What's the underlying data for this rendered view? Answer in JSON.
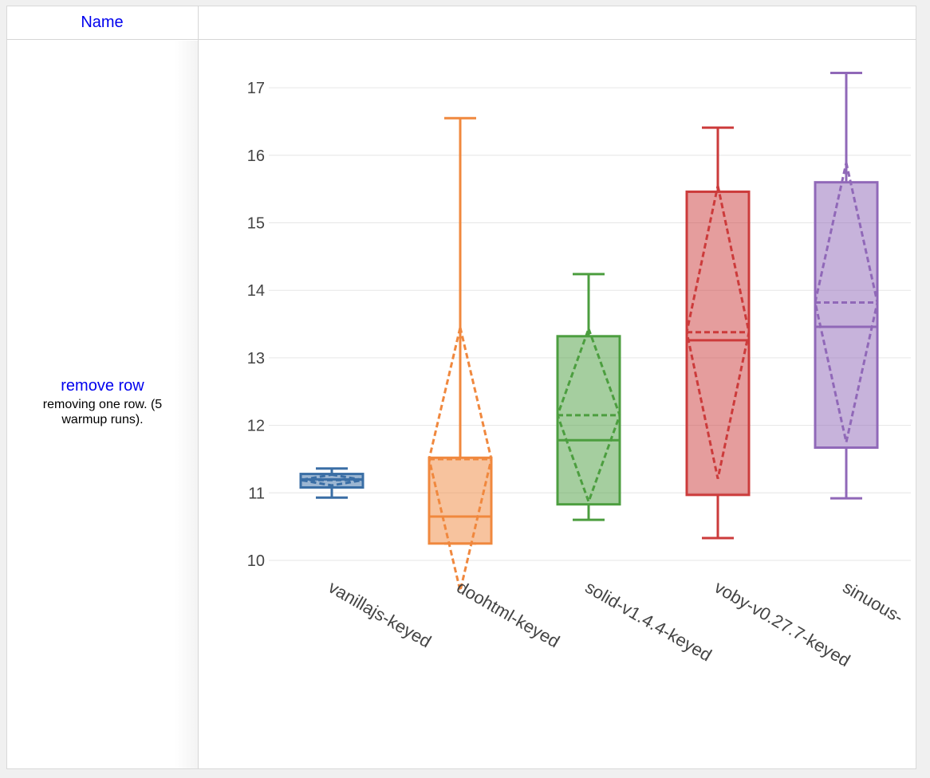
{
  "table": {
    "header_name": "Name",
    "benchmark": {
      "name": "remove row",
      "description": "removing one row. (5 warmup runs)."
    }
  },
  "chart_data": {
    "type": "box",
    "ylim": [
      9.9,
      17.4
    ],
    "y_ticks": [
      10,
      11,
      12,
      13,
      14,
      15,
      16,
      17
    ],
    "grid": true,
    "categories": [
      "vanillajs-keyed",
      "doohtml-keyed",
      "solid-v1.4.4-keyed",
      "voby-v0.27.7-keyed",
      "sinuous-"
    ],
    "series": [
      {
        "category": "vanillajs-keyed",
        "color": "#3a6ea5",
        "min": 10.93,
        "q1": 11.08,
        "median": 11.2,
        "q3": 11.28,
        "max": 11.36,
        "mean": 11.19,
        "sd": 0.08
      },
      {
        "category": "doohtml-keyed",
        "color": "#f0883e",
        "min": 10.25,
        "q1": 10.25,
        "median": 10.65,
        "q3": 11.52,
        "max": 16.55,
        "mean": 11.5,
        "sd": 1.95
      },
      {
        "category": "solid-v1.4.4-keyed",
        "color": "#4c9e3f",
        "min": 10.6,
        "q1": 10.83,
        "median": 11.78,
        "q3": 13.32,
        "max": 14.24,
        "mean": 12.15,
        "sd": 1.28
      },
      {
        "category": "voby-v0.27.7-keyed",
        "color": "#cc3b3b",
        "min": 10.33,
        "q1": 10.97,
        "median": 13.26,
        "q3": 15.46,
        "max": 16.41,
        "mean": 13.38,
        "sd": 2.17
      },
      {
        "category": "sinuous-",
        "color": "#9068b8",
        "min": 10.92,
        "q1": 11.67,
        "median": 13.46,
        "q3": 15.6,
        "max": 17.22,
        "mean": 13.82,
        "sd": 2.07
      }
    ]
  }
}
